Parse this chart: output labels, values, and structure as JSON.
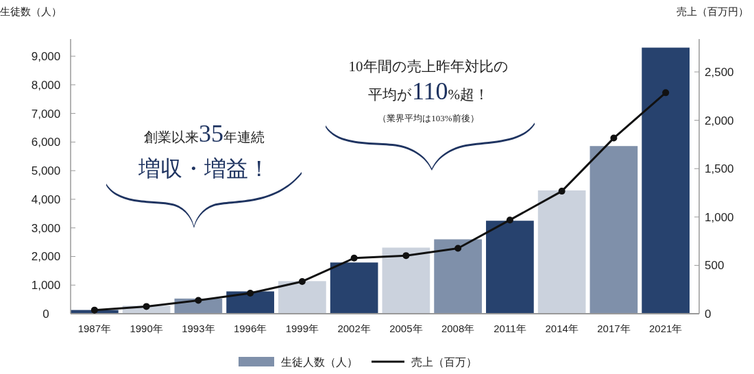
{
  "chart_data": {
    "type": "bar",
    "categories": [
      "1987年",
      "1990年",
      "1993年",
      "1996年",
      "1999年",
      "2002年",
      "2005年",
      "2008年",
      "2011年",
      "2014年",
      "2017年",
      "2021年"
    ],
    "series": [
      {
        "name": "生徒人数（人）",
        "color": "#7f90aa",
        "colors": [
          "#27426e",
          "#cbd2dd",
          "#7f90aa",
          "#27426e",
          "#cbd2dd",
          "#27426e",
          "#cbd2dd",
          "#7f90aa",
          "#27426e",
          "#cbd2dd",
          "#7f90aa",
          "#27426e"
        ],
        "values": [
          130,
          280,
          530,
          780,
          1140,
          1790,
          2310,
          2600,
          3250,
          4310,
          5860,
          9300
        ]
      },
      {
        "name": "売上（百万）",
        "type": "line",
        "axis": "y2",
        "color": "#111111",
        "values": [
          38,
          75,
          138,
          213,
          333,
          575,
          601,
          676,
          969,
          1267,
          1816,
          2285
        ]
      }
    ],
    "ylabel": "生徒数（人）",
    "y2label": "売上（百万円）",
    "ylim": [
      0,
      9600
    ],
    "yticks": [
      {
        "value": 0,
        "label": "0"
      },
      {
        "value": 1000,
        "label": "1,000"
      },
      {
        "value": 2000,
        "label": "2,000"
      },
      {
        "value": 3000,
        "label": "3,000"
      },
      {
        "value": 4000,
        "label": "4,000"
      },
      {
        "value": 5000,
        "label": "5,000"
      },
      {
        "value": 6000,
        "label": "6,000"
      },
      {
        "value": 7000,
        "label": "7,000"
      },
      {
        "value": 8000,
        "label": "8,000"
      },
      {
        "value": 9000,
        "label": "9,000"
      }
    ],
    "y2lim": [
      0,
      2840
    ],
    "y2ticks": [
      {
        "value": 0,
        "label": "0"
      },
      {
        "value": 500,
        "label": "500"
      },
      {
        "value": 1000,
        "label": "1,000"
      },
      {
        "value": 1500,
        "label": "1,500"
      },
      {
        "value": 2000,
        "label": "2,000"
      },
      {
        "value": 2500,
        "label": "2,500"
      }
    ],
    "annotations": [
      "創業以来35年連続",
      "増収・増益！",
      "10年間の売上昨年対比の",
      "平均が110%超！",
      "（業界平均は103%前後）"
    ],
    "legend": "bottom",
    "marker": "circle",
    "line_style": "solid",
    "grid": false
  }
}
